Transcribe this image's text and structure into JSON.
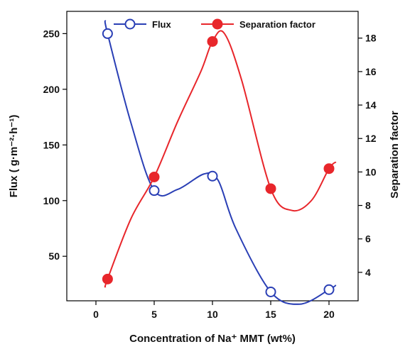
{
  "chart_data": {
    "type": "line",
    "xlabel": "Concentration of Na⁺ MMT (wt%)",
    "ylabel": "Flux ( g·m⁻²·h⁻¹)",
    "y2label": "Separation factor",
    "xlim": [
      -2.5,
      22.5
    ],
    "ylim": [
      10,
      270
    ],
    "y2lim": [
      2.3,
      19.6
    ],
    "xticks": [
      0,
      5,
      10,
      15,
      20
    ],
    "yticks": [
      50,
      100,
      150,
      200,
      250
    ],
    "y2ticks": [
      4,
      6,
      8,
      10,
      12,
      14,
      16,
      18
    ],
    "legend_position": "top",
    "grid": false,
    "series": [
      {
        "name": "Flux",
        "axis": "left",
        "color": "#2a3fb5",
        "marker": "open-circle",
        "x": [
          1,
          5,
          10,
          15,
          20
        ],
        "y": [
          250,
          109,
          122,
          18,
          20
        ],
        "curve_x": [
          0.8,
          1,
          3,
          5,
          7,
          9.3,
          10.5,
          12,
          15,
          17.5,
          20,
          20.6
        ],
        "curve_y": [
          262,
          250,
          170,
          109,
          110,
          124,
          118,
          75,
          18,
          7,
          20,
          24
        ]
      },
      {
        "name": "Separation factor",
        "axis": "right",
        "color": "#e8262b",
        "marker": "filled-circle",
        "x": [
          1,
          5,
          10,
          15,
          20
        ],
        "y": [
          3.6,
          9.7,
          17.8,
          9.0,
          10.2
        ],
        "curve_x": [
          0.8,
          1,
          3,
          5,
          7,
          9,
          10,
          11,
          12.5,
          15,
          16.8,
          18.5,
          20,
          20.6
        ],
        "curve_y": [
          3.1,
          3.6,
          7.2,
          9.7,
          13.0,
          16.0,
          17.8,
          18.3,
          15.5,
          9.0,
          7.7,
          8.3,
          10.2,
          10.6
        ]
      }
    ]
  }
}
